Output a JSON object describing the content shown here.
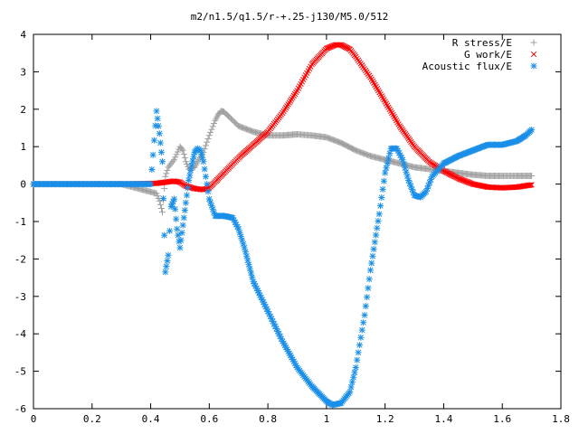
{
  "chart_data": {
    "type": "scatter",
    "title": "m2/n1.5/q1.5/r-+.25-j130/M5.0/512",
    "xlabel": "",
    "ylabel": "",
    "xlim": [
      0,
      1.8
    ],
    "ylim": [
      -6,
      4
    ],
    "x_ticks": [
      "0",
      "0.2",
      "0.4",
      "0.6",
      "0.8",
      "1",
      "1.2",
      "1.4",
      "1.6",
      "1.8"
    ],
    "y_ticks": [
      "4",
      "3",
      "2",
      "1",
      "0",
      "-1",
      "-2",
      "-3",
      "-4",
      "-5",
      "-6"
    ],
    "grid": false,
    "legend_position": "top-right",
    "series": [
      {
        "name": "R stress/E",
        "marker": "plus",
        "color": "#a0a0a0",
        "x": [
          0.0,
          0.1,
          0.2,
          0.3,
          0.42,
          0.43,
          0.44,
          0.45,
          0.46,
          0.48,
          0.5,
          0.51,
          0.52,
          0.53,
          0.55,
          0.56,
          0.58,
          0.6,
          0.62,
          0.63,
          0.64,
          0.65,
          0.67,
          0.7,
          0.75,
          0.8,
          0.85,
          0.9,
          0.95,
          1.0,
          1.05,
          1.1,
          1.15,
          1.2,
          1.25,
          1.3,
          1.35,
          1.4,
          1.45,
          1.5,
          1.55,
          1.6,
          1.65,
          1.7
        ],
        "y": [
          0,
          0,
          0,
          0,
          -0.25,
          -0.45,
          -0.75,
          0.2,
          0.45,
          0.65,
          1.0,
          0.9,
          0.6,
          0.4,
          0.45,
          0.6,
          0.85,
          1.3,
          1.7,
          1.85,
          1.95,
          1.93,
          1.78,
          1.55,
          1.4,
          1.3,
          1.3,
          1.33,
          1.3,
          1.25,
          1.1,
          0.9,
          0.75,
          0.65,
          0.55,
          0.45,
          0.4,
          0.35,
          0.3,
          0.25,
          0.22,
          0.22,
          0.22,
          0.22
        ]
      },
      {
        "name": "G work/E",
        "marker": "cross",
        "color": "#ff0000",
        "x": [
          0.0,
          0.1,
          0.2,
          0.3,
          0.42,
          0.45,
          0.48,
          0.5,
          0.52,
          0.55,
          0.58,
          0.6,
          0.65,
          0.7,
          0.75,
          0.8,
          0.85,
          0.9,
          0.95,
          1.0,
          1.03,
          1.05,
          1.08,
          1.1,
          1.15,
          1.2,
          1.25,
          1.3,
          1.35,
          1.4,
          1.45,
          1.5,
          1.55,
          1.6,
          1.65,
          1.7
        ],
        "y": [
          0,
          0,
          0,
          0,
          0.02,
          0.05,
          0.08,
          0.05,
          -0.05,
          -0.12,
          -0.15,
          -0.1,
          0.3,
          0.7,
          1.05,
          1.4,
          1.9,
          2.5,
          3.2,
          3.62,
          3.72,
          3.72,
          3.6,
          3.4,
          2.85,
          2.2,
          1.55,
          1.0,
          0.6,
          0.35,
          0.15,
          0.0,
          -0.08,
          -0.1,
          -0.08,
          -0.02
        ]
      },
      {
        "name": "Acoustic flux/E",
        "marker": "star",
        "color": "#1a8fe8",
        "x": [
          0.0,
          0.1,
          0.2,
          0.3,
          0.4,
          0.42,
          0.43,
          0.44,
          0.45,
          0.46,
          0.47,
          0.48,
          0.49,
          0.5,
          0.51,
          0.52,
          0.53,
          0.54,
          0.55,
          0.56,
          0.57,
          0.58,
          0.6,
          0.62,
          0.65,
          0.68,
          0.7,
          0.72,
          0.75,
          0.8,
          0.85,
          0.9,
          0.95,
          1.0,
          1.02,
          1.05,
          1.08,
          1.1,
          1.13,
          1.15,
          1.18,
          1.2,
          1.22,
          1.24,
          1.26,
          1.28,
          1.3,
          1.32,
          1.34,
          1.36,
          1.4,
          1.45,
          1.5,
          1.55,
          1.6,
          1.65,
          1.68,
          1.7
        ],
        "y": [
          0,
          0,
          0,
          0,
          0,
          1.95,
          1.35,
          0.6,
          -2.35,
          -1.9,
          -0.6,
          -0.4,
          -1.2,
          -1.7,
          -1.1,
          -0.5,
          0.1,
          0.5,
          0.85,
          0.95,
          0.9,
          0.6,
          -0.4,
          -0.85,
          -0.85,
          -0.9,
          -1.2,
          -1.7,
          -2.6,
          -3.4,
          -4.2,
          -4.9,
          -5.4,
          -5.8,
          -5.9,
          -5.85,
          -5.55,
          -4.9,
          -3.5,
          -2.3,
          -0.8,
          0.3,
          0.95,
          0.95,
          0.65,
          0.1,
          -0.3,
          -0.35,
          -0.2,
          0.2,
          0.55,
          0.75,
          0.9,
          1.05,
          1.05,
          1.15,
          1.3,
          1.45
        ]
      }
    ]
  }
}
